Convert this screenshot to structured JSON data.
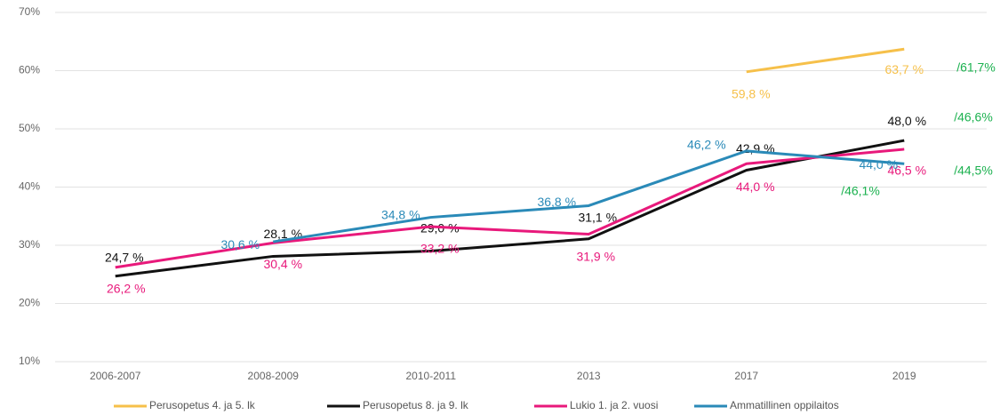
{
  "chart_data": {
    "type": "line",
    "categories": [
      "2006-2007",
      "2008-2009",
      "2010-2011",
      "2013",
      "2017",
      "2019"
    ],
    "series": [
      {
        "name": "Perusopetus 4. ja 5. lk",
        "color": "#f6c04a",
        "values": [
          null,
          null,
          null,
          null,
          59.8,
          63.7
        ],
        "value_labels": [
          null,
          null,
          null,
          null,
          "59,8 %",
          "63,7 %"
        ]
      },
      {
        "name": "Perusopetus 8. ja 9. lk",
        "color": "#111111",
        "values": [
          24.7,
          28.1,
          29.0,
          31.1,
          42.9,
          48.0
        ],
        "value_labels": [
          "24,7 %",
          "28,1 %",
          "29,0 %",
          "31,1 %",
          "42,9 %",
          "48,0 %"
        ]
      },
      {
        "name": "Lukio 1. ja 2. vuosi",
        "color": "#e8197b",
        "values": [
          26.2,
          30.4,
          33.2,
          31.9,
          44.0,
          46.5
        ],
        "value_labels": [
          "26,2 %",
          "30,4 %",
          "33,2 %",
          "31,9 %",
          "44,0 %",
          "46,5 %"
        ]
      },
      {
        "name": "Ammatillinen oppilaitos",
        "color": "#2a8ab8",
        "values": [
          null,
          30.6,
          34.8,
          36.8,
          46.2,
          44.0
        ],
        "value_labels": [
          null,
          "30,6 %",
          "34,8 %",
          "36,8 %",
          "46,2 %",
          "44,0 %"
        ]
      }
    ],
    "annotations": [
      "/61,7%",
      "/46,6%",
      "/44,5%",
      "/46,1%"
    ],
    "annotation_color": "#1bb14f",
    "ylim": [
      10,
      70
    ],
    "yticks": [
      {
        "value": 10,
        "label": "10%"
      },
      {
        "value": 20,
        "label": "20%"
      },
      {
        "value": 30,
        "label": "30%"
      },
      {
        "value": 40,
        "label": "40%"
      },
      {
        "value": 50,
        "label": "50%"
      },
      {
        "value": 60,
        "label": "60%"
      },
      {
        "value": 70,
        "label": "70%"
      }
    ],
    "grid": true
  }
}
